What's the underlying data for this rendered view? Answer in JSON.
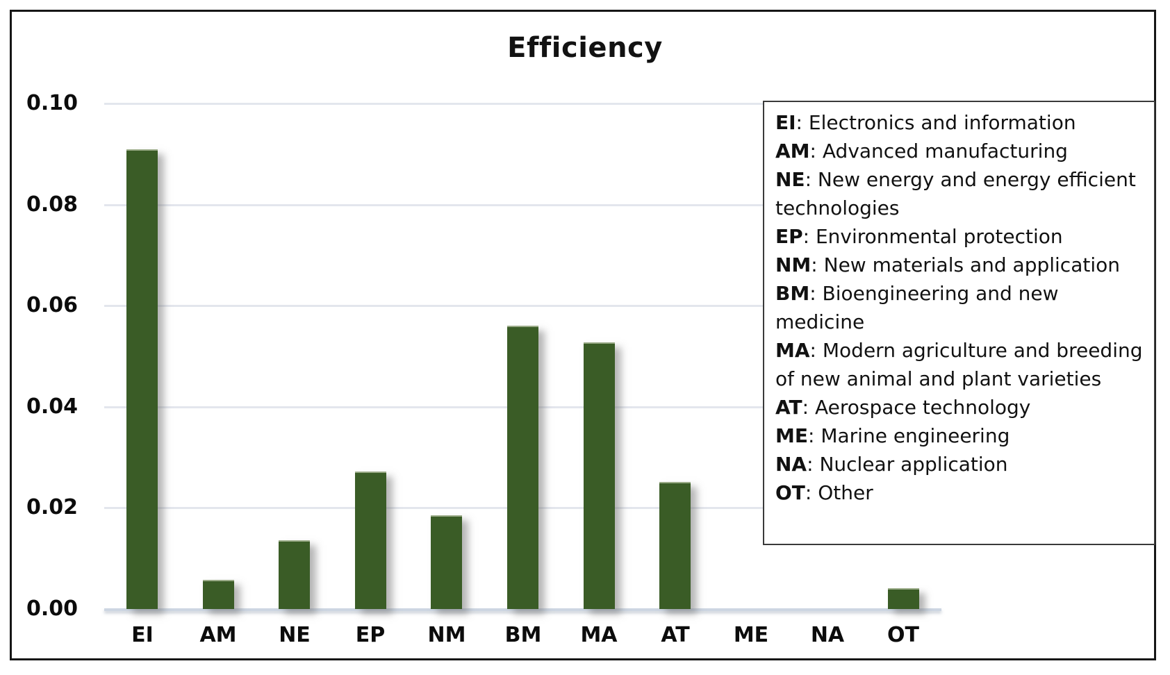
{
  "title": "Efficiency",
  "chart_data": {
    "type": "bar",
    "title": "Efficiency",
    "categories": [
      "EI",
      "AM",
      "NE",
      "EP",
      "NM",
      "BM",
      "MA",
      "AT",
      "ME",
      "NA",
      "OT"
    ],
    "values": [
      0.0907,
      0.0055,
      0.0133,
      0.0269,
      0.0183,
      0.0558,
      0.0525,
      0.0249,
      0.0,
      0.0,
      0.0038
    ],
    "xlabel": "",
    "ylabel": "",
    "ylim": [
      0,
      0.1
    ],
    "ytick_labels": [
      "0.10",
      "0.08",
      "0.06",
      "0.04",
      "0.02",
      "0.00"
    ],
    "grid": true,
    "legend_position": "right-overlay"
  },
  "legend": {
    "entries": [
      {
        "abbr": "EI",
        "desc": "Electronics and information"
      },
      {
        "abbr": "AM",
        "desc": "Advanced manufacturing"
      },
      {
        "abbr": "NE",
        "desc": "New energy and energy efficient technologies"
      },
      {
        "abbr": "EP",
        "desc": "Environmental protection"
      },
      {
        "abbr": "NM",
        "desc": "New materials and application"
      },
      {
        "abbr": "BM",
        "desc": "Bioengineering and new medicine"
      },
      {
        "abbr": "MA",
        "desc": "Modern agriculture and breeding of new animal and plant varieties"
      },
      {
        "abbr": "AT",
        "desc": "Aerospace technology"
      },
      {
        "abbr": "ME",
        "desc": "Marine engineering"
      },
      {
        "abbr": "NA",
        "desc": "Nuclear application"
      },
      {
        "abbr": "OT",
        "desc": "Other"
      }
    ],
    "separator": ": "
  },
  "colors": {
    "bar": "#3A5C26",
    "bar_top_edge": "#9AAB87",
    "gridline": "#E3E6ED",
    "baseline": "#CDD6E2",
    "frame_border": "#161616",
    "legend_border": "#3A3A3A",
    "text": "#0C0C0C"
  }
}
